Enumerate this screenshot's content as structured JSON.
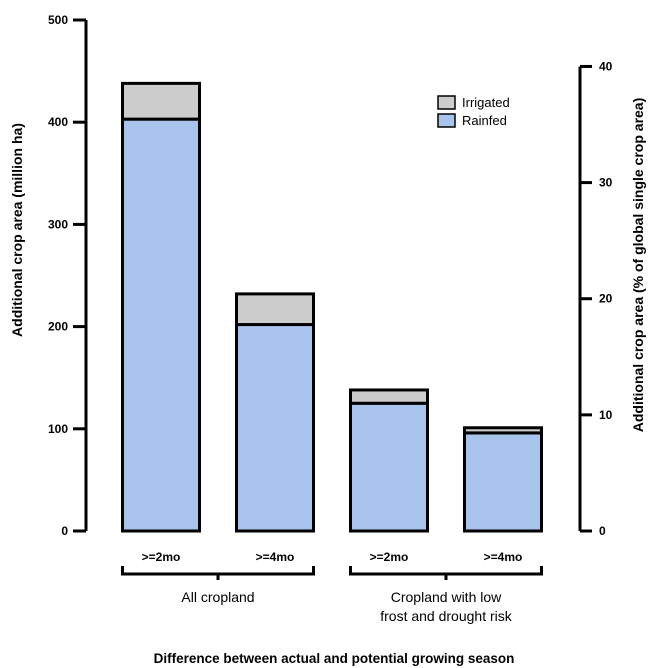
{
  "chart_data": {
    "type": "bar",
    "stacked": true,
    "categories": [
      ">=2mo",
      ">=4mo",
      ">=2mo",
      ">=4mo"
    ],
    "groups": [
      {
        "label": "All cropland",
        "categories": [
          0,
          1
        ]
      },
      {
        "label_lines": [
          "Cropland with low",
          "frost and drought risk"
        ],
        "categories": [
          2,
          3
        ]
      }
    ],
    "series": [
      {
        "name": "Rainfed",
        "color": "#a9c4ec",
        "values": [
          403,
          202,
          125,
          96
        ]
      },
      {
        "name": "Irrigated",
        "color": "#cccccc",
        "values": [
          35,
          30,
          13,
          5
        ]
      }
    ],
    "ylabel": "Additional crop area (million ha)",
    "ylabel_right": "Additional crop area (% of global single crop area)",
    "xlabel": "Difference between actual and potential growing season",
    "ylim": [
      0,
      500
    ],
    "yticks": [
      0,
      100,
      200,
      300,
      400,
      500
    ],
    "ylim_right": [
      0,
      44.0
    ],
    "yticks_right": [
      0,
      10,
      20,
      30,
      40
    ],
    "legend": [
      {
        "name": "Irrigated",
        "color": "#cccccc"
      },
      {
        "name": "Rainfed",
        "color": "#a9c4ec"
      }
    ],
    "legend_position": "top-right",
    "grid": false
  }
}
